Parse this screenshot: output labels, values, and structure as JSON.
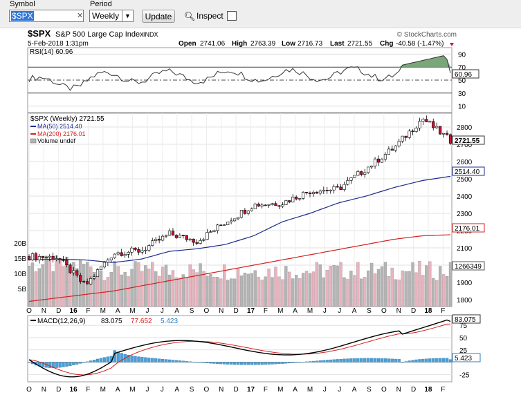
{
  "toolbar": {
    "symbol_label": "Symbol",
    "symbol_value": "$SPX",
    "period_label": "Period",
    "period_value": "Weekly",
    "update_label": "Update",
    "inspect_label": "Inspect"
  },
  "header": {
    "ticker": "$SPX",
    "name": "S&P 500 Large Cap Index",
    "exchange": "INDX",
    "watermark": "© StockCharts.com",
    "date": "5-Feb-2018 1:31pm",
    "open_label": "Open",
    "open": "2741.06",
    "high_label": "High",
    "high": "2763.39",
    "low_label": "Low",
    "low": "2716.73",
    "last_label": "Last",
    "last": "2721.55",
    "chg_label": "Chg",
    "chg": "-40.58 (-1.47%)"
  },
  "rsi": {
    "legend": "RSI(14) 60.96",
    "ticks": [
      "90",
      "70",
      "50",
      "30",
      "10"
    ],
    "value_tag": "60.96",
    "colors": {
      "line": "#333333",
      "fill": "#6b9c6b"
    }
  },
  "price": {
    "legend_main": "$SPX (Weekly) 2721.55",
    "legend_ma50": "MA(50) 2514.40",
    "legend_ma200": "MA(200) 2176.01",
    "legend_vol": "Volume undef",
    "ticks": [
      "2800",
      "2700",
      "2600",
      "2500",
      "2400",
      "2300",
      "2200",
      "2100",
      "2000",
      "1900",
      "1800"
    ],
    "vol_ticks": [
      "20B",
      "15B",
      "10B",
      "5B"
    ],
    "tag_last": "2721.55",
    "tag_ma50": "2514.40",
    "tag_ma200": "2176.01",
    "tag_vol": "1266349",
    "colors": {
      "ma50": "#1b2b8f",
      "ma200": "#d42020",
      "up": "#ffffff",
      "down": "#c8102e",
      "vol_up": "#b4b4b4",
      "vol_down": "#e8b3be"
    }
  },
  "macd": {
    "legend_main": "MACD(12,26,9)",
    "legend_macd": "83.075",
    "legend_signal": "77.652",
    "legend_hist": "5.423",
    "ticks": [
      "75",
      "50",
      "25",
      "0",
      "-25"
    ],
    "tag_macd": "83.075",
    "tag_signal": "77.652",
    "tag_hist": "5.423",
    "colors": {
      "macd": "#000000",
      "signal": "#d42020",
      "hist": "#4a9fd6"
    }
  },
  "x_axis": {
    "labels": [
      "O",
      "N",
      "D",
      "16",
      "F",
      "M",
      "A",
      "M",
      "J",
      "J",
      "A",
      "S",
      "O",
      "N",
      "D",
      "17",
      "F",
      "M",
      "A",
      "M",
      "J",
      "J",
      "A",
      "S",
      "O",
      "N",
      "D",
      "18",
      "F"
    ],
    "bold": [
      "16",
      "17",
      "18"
    ]
  },
  "chart_data": {
    "type": "line",
    "title": "$SPX S&P 500 Large Cap Index",
    "period": "Weekly",
    "x": [
      "2015-10",
      "2015-12",
      "2016-02",
      "2016-04",
      "2016-06",
      "2016-08",
      "2016-10",
      "2016-12",
      "2017-02",
      "2017-04",
      "2017-06",
      "2017-08",
      "2017-10",
      "2017-12",
      "2018-01",
      "2018-02"
    ],
    "series": [
      {
        "name": "$SPX (Weekly)",
        "values": [
          2050,
          2045,
          1880,
          2070,
          2085,
          2180,
          2140,
          2250,
          2350,
          2360,
          2430,
          2440,
          2560,
          2680,
          2850,
          2721.55
        ]
      },
      {
        "name": "MA(50)",
        "values": [
          2030,
          2035,
          2030,
          2015,
          2035,
          2080,
          2095,
          2120,
          2170,
          2250,
          2300,
          2360,
          2400,
          2450,
          2490,
          2514.4
        ]
      },
      {
        "name": "MA(200)",
        "values": [
          1790,
          1810,
          1830,
          1850,
          1880,
          1910,
          1940,
          1970,
          2000,
          2030,
          2060,
          2090,
          2120,
          2150,
          2170,
          2176.01
        ]
      }
    ],
    "rsi_last": 60.96,
    "macd_last": 83.075,
    "signal_last": 77.652,
    "hist_last": 5.423,
    "volume_last": 1266349,
    "ylim": [
      1780,
      2880
    ]
  }
}
